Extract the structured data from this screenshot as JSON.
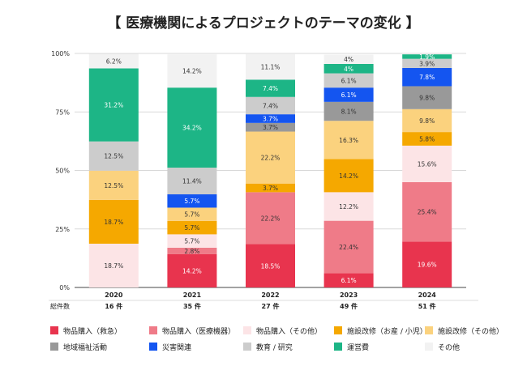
{
  "chart_data": {
    "type": "bar",
    "stacked": true,
    "title": "【 医療機関によるプロジェクトのテーマの変化 】",
    "categories": [
      "2020",
      "2021",
      "2022",
      "2023",
      "2024"
    ],
    "counts_label": "総件数",
    "counts": [
      "16 件",
      "35 件",
      "27 件",
      "49 件",
      "51 件"
    ],
    "y_ticks": [
      "0%",
      "25%",
      "50%",
      "75%",
      "100%"
    ],
    "ylim": [
      0,
      100
    ],
    "grid": true,
    "legend_position": "bottom",
    "series": [
      {
        "name": "物品購入（救急）",
        "color": "#e8344e",
        "values": [
          0,
          14.2,
          18.5,
          6.1,
          19.6
        ],
        "labels": [
          "",
          "14.2%",
          "18.5%",
          "6.1%",
          "19.6%"
        ]
      },
      {
        "name": "物品購入（医療機器）",
        "color": "#ef7b88",
        "values": [
          0,
          2.8,
          22.2,
          22.4,
          25.4
        ],
        "labels": [
          "",
          "2.8%",
          "22.2%",
          "22.4%",
          "25.4%"
        ]
      },
      {
        "name": "物品購入（その他）",
        "color": "#fce4e6",
        "values": [
          18.7,
          5.7,
          0,
          12.2,
          15.6
        ],
        "labels": [
          "18.7%",
          "5.7%",
          "",
          "12.2%",
          "15.6%"
        ]
      },
      {
        "name": "施設改修（お産 / 小児）",
        "color": "#f5a800",
        "values": [
          18.7,
          5.7,
          3.7,
          14.2,
          5.8
        ],
        "labels": [
          "18.7%",
          "5.7%",
          "3.7%",
          "14.2%",
          "5.8%"
        ]
      },
      {
        "name": "施設改修（その他）",
        "color": "#fbd27e",
        "values": [
          12.5,
          5.7,
          22.2,
          16.3,
          9.8
        ],
        "labels": [
          "12.5%",
          "5.7%",
          "22.2%",
          "16.3%",
          "9.8%"
        ]
      },
      {
        "name": "地域福祉活動",
        "color": "#999999",
        "values": [
          0,
          0,
          3.7,
          8.1,
          9.8
        ],
        "labels": [
          "",
          "",
          "3.7%",
          "8.1%",
          "9.8%"
        ]
      },
      {
        "name": "災害関連",
        "color": "#1455f0",
        "values": [
          0,
          5.7,
          3.7,
          6.1,
          7.8
        ],
        "labels": [
          "",
          "5.7%",
          "3.7%",
          "6.1%",
          "7.8%"
        ]
      },
      {
        "name": "教育 / 研究",
        "color": "#cccccc",
        "values": [
          12.5,
          11.4,
          7.4,
          6.1,
          3.9
        ],
        "labels": [
          "12.5%",
          "11.4%",
          "7.4%",
          "6.1%",
          "3.9%"
        ]
      },
      {
        "name": "運営費",
        "color": "#1db586",
        "values": [
          31.2,
          34.2,
          7.4,
          4,
          1.9
        ],
        "labels": [
          "31.2%",
          "34.2%",
          "7.4%",
          "4%",
          "1.9%"
        ]
      },
      {
        "name": "その他",
        "color": "#f2f2f2",
        "values": [
          6.2,
          14.2,
          11.1,
          4,
          0
        ],
        "labels": [
          "6.2%",
          "14.2%",
          "11.1%",
          "4%",
          ""
        ]
      }
    ]
  }
}
